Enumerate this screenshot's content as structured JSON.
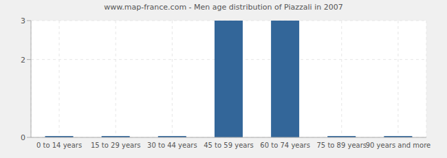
{
  "chart_data": {
    "type": "bar",
    "title": "www.map-france.com - Men age distribution of Piazzali in 2007",
    "categories": [
      "0 to 14 years",
      "15 to 29 years",
      "30 to 44 years",
      "45 to 59 years",
      "60 to 74 years",
      "75 to 89 years",
      "90 years and more"
    ],
    "values": [
      0,
      0,
      0,
      3,
      3,
      0,
      0
    ],
    "color": "#336699",
    "ylim": [
      0,
      3
    ],
    "yticks": [
      0,
      2,
      3
    ],
    "grid": true
  }
}
